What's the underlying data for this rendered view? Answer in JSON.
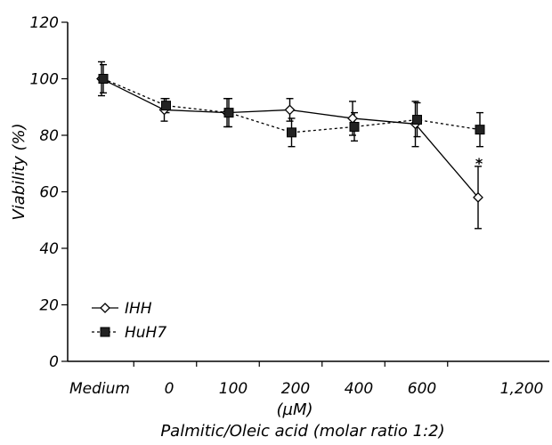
{
  "chart_data": {
    "type": "line",
    "categories": [
      "Medium",
      "0",
      "100",
      "200",
      "400",
      "600",
      "1,200"
    ],
    "x_unit": "(µM)",
    "xlabel": "Palmitic/Oleic acid (molar ratio 1:2)",
    "ylabel": "Viability (%)",
    "ylim": [
      0,
      120
    ],
    "yticks": [
      0,
      20,
      40,
      60,
      80,
      100,
      120
    ],
    "grid": false,
    "legend_position": "bottom-left",
    "series": [
      {
        "name": "IHH",
        "marker": "open-diamond",
        "line_style": "solid",
        "values": [
          100,
          89,
          88,
          89,
          86,
          84,
          58
        ],
        "errors": [
          6,
          4,
          5,
          4,
          6,
          8,
          11
        ]
      },
      {
        "name": "HuH7",
        "marker": "filled-square",
        "line_style": "dashed",
        "values": [
          100,
          90.5,
          88,
          81,
          83,
          85.5,
          82
        ],
        "errors": [
          5,
          2.5,
          5,
          5,
          5,
          6,
          6
        ]
      }
    ],
    "annotations": [
      {
        "text": "*",
        "category": "1,200",
        "value": 70
      }
    ]
  }
}
